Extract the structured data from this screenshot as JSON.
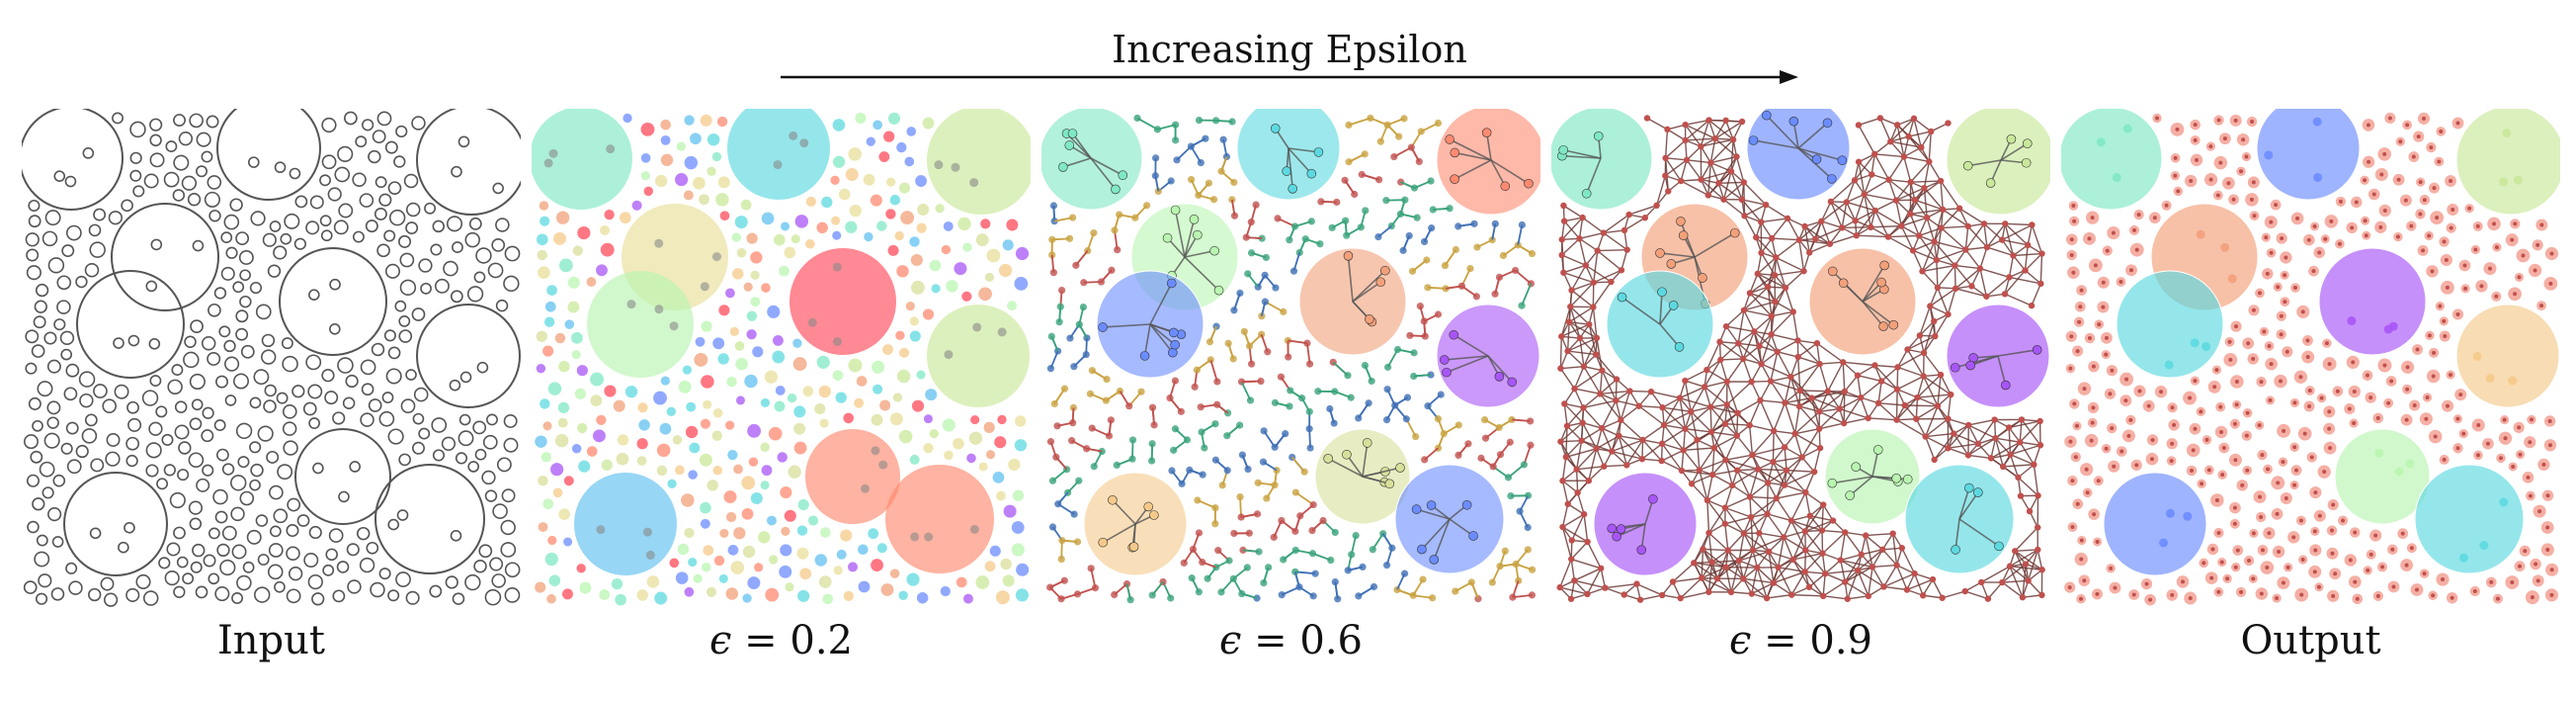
{
  "header": {
    "arrow_label": "Increasing Epsilon"
  },
  "panels": [
    {
      "caption": "Input"
    },
    {
      "caption_symbol": "ϵ",
      "caption_value": " = 0.2"
    },
    {
      "caption_symbol": "ϵ",
      "caption_value": " = 0.6"
    },
    {
      "caption_symbol": "ϵ",
      "caption_value": " = 0.9"
    },
    {
      "caption": "Output"
    }
  ],
  "colors": {
    "outline": "#555555",
    "edge_red": "#c0504d",
    "edge_green": "#3aa37a",
    "edge_blue": "#3f6fb5",
    "palette": [
      "#7fe8c5",
      "#5cd9e0",
      "#c9e89a",
      "#f2a07a",
      "#ff4a5a",
      "#6b8cff",
      "#a855f7",
      "#f5c98a",
      "#b9f5b0",
      "#d8df9a",
      "#60c0f0",
      "#ff8a70",
      "#e8df9a"
    ]
  }
}
